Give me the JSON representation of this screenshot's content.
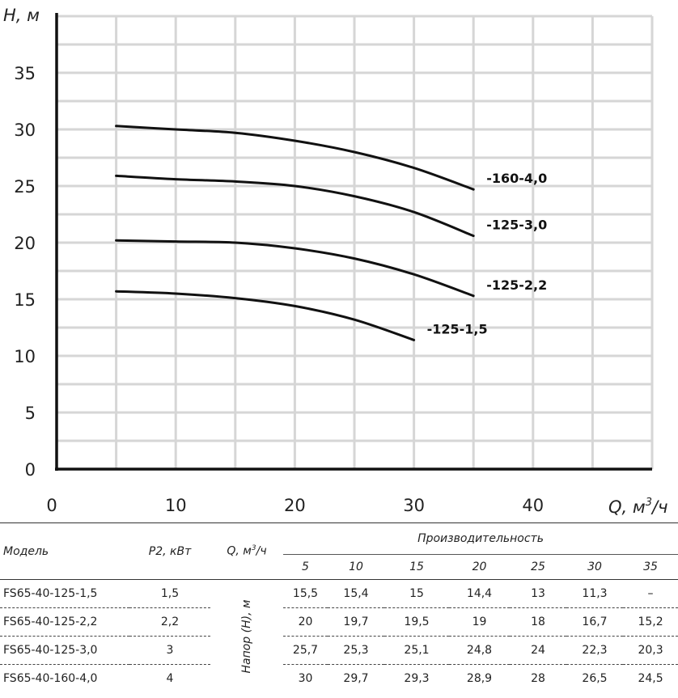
{
  "chart_data": {
    "type": "line",
    "title": "",
    "xlabel": "Q, м",
    "xlabel_sup": "3",
    "xlabel_unit": "/ч",
    "ylabel": "H, м",
    "xlim": [
      0,
      50
    ],
    "ylim": [
      0,
      40
    ],
    "xticks": [
      0,
      10,
      20,
      30,
      40
    ],
    "yticks": [
      0,
      5,
      10,
      15,
      20,
      25,
      30,
      35
    ],
    "grid": true,
    "series": [
      {
        "name": "-160-4,0",
        "x": [
          5,
          10,
          15,
          20,
          25,
          30,
          35
        ],
        "y": [
          30.3,
          30.0,
          29.7,
          29.0,
          28.0,
          26.6,
          24.7
        ]
      },
      {
        "name": "-125-3,0",
        "x": [
          5,
          10,
          15,
          20,
          25,
          30,
          35
        ],
        "y": [
          25.9,
          25.6,
          25.4,
          25.0,
          24.1,
          22.7,
          20.6
        ]
      },
      {
        "name": "-125-2,2",
        "x": [
          5,
          10,
          15,
          20,
          25,
          30,
          35
        ],
        "y": [
          20.2,
          20.1,
          20.0,
          19.5,
          18.6,
          17.2,
          15.3
        ]
      },
      {
        "name": "-125-1,5",
        "x": [
          5,
          10,
          15,
          20,
          25,
          30
        ],
        "y": [
          15.7,
          15.5,
          15.1,
          14.4,
          13.2,
          11.4
        ]
      }
    ]
  },
  "table": {
    "headers": {
      "model": "Модель",
      "p2": "P2, кВт",
      "q": "Q, м",
      "q_sup": "3",
      "q_unit": "/ч",
      "performance": "Производительность",
      "head": "Напор (H), м",
      "flows": [
        "5",
        "10",
        "15",
        "20",
        "25",
        "30",
        "35"
      ]
    },
    "rows": [
      {
        "model": "FS65-40-125-1,5",
        "p2": "1,5",
        "values": [
          "15,5",
          "15,4",
          "15",
          "14,4",
          "13",
          "11,3",
          "–"
        ]
      },
      {
        "model": "FS65-40-125-2,2",
        "p2": "2,2",
        "values": [
          "20",
          "19,7",
          "19,5",
          "19",
          "18",
          "16,7",
          "15,2"
        ]
      },
      {
        "model": "FS65-40-125-3,0",
        "p2": "3",
        "values": [
          "25,7",
          "25,3",
          "25,1",
          "24,8",
          "24",
          "22,3",
          "20,3"
        ]
      },
      {
        "model": "FS65-40-160-4,0",
        "p2": "4",
        "values": [
          "30",
          "29,7",
          "29,3",
          "28,9",
          "28",
          "26,5",
          "24,5"
        ]
      }
    ]
  }
}
